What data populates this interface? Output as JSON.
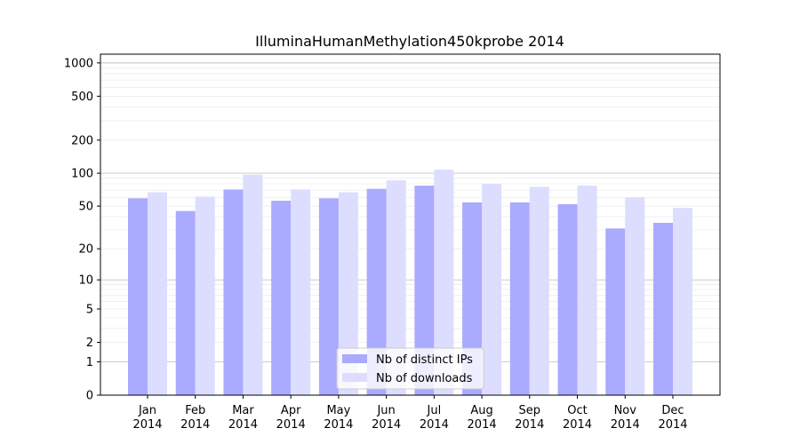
{
  "chart_data": {
    "type": "bar",
    "title": "IlluminaHumanMethylation450kprobe 2014",
    "xlabel": "",
    "ylabel": "",
    "yscale": "log1p",
    "ylim": [
      0,
      1200
    ],
    "yticks": [
      {
        "value": 0,
        "label": "0"
      },
      {
        "value": 1,
        "label": "1"
      },
      {
        "value": 2,
        "label": "2"
      },
      {
        "value": 5,
        "label": "5"
      },
      {
        "value": 10,
        "label": "10"
      },
      {
        "value": 20,
        "label": "20"
      },
      {
        "value": 50,
        "label": "50"
      },
      {
        "value": 100,
        "label": "100"
      },
      {
        "value": 200,
        "label": "200"
      },
      {
        "value": 500,
        "label": "500"
      },
      {
        "value": 1000,
        "label": "1000"
      }
    ],
    "major_gridlines": [
      1,
      10,
      100,
      1000
    ],
    "minor_gridlines": [
      2,
      3,
      4,
      5,
      6,
      7,
      8,
      9,
      20,
      30,
      40,
      50,
      60,
      70,
      80,
      90,
      200,
      300,
      400,
      500,
      600,
      700,
      800,
      900
    ],
    "grid": true,
    "categories": [
      {
        "month": "Jan",
        "year": "2014"
      },
      {
        "month": "Feb",
        "year": "2014"
      },
      {
        "month": "Mar",
        "year": "2014"
      },
      {
        "month": "Apr",
        "year": "2014"
      },
      {
        "month": "May",
        "year": "2014"
      },
      {
        "month": "Jun",
        "year": "2014"
      },
      {
        "month": "Jul",
        "year": "2014"
      },
      {
        "month": "Aug",
        "year": "2014"
      },
      {
        "month": "Sep",
        "year": "2014"
      },
      {
        "month": "Oct",
        "year": "2014"
      },
      {
        "month": "Nov",
        "year": "2014"
      },
      {
        "month": "Dec",
        "year": "2014"
      }
    ],
    "series": [
      {
        "name": "Nb of distinct IPs",
        "color": "#aaaaff",
        "values": [
          59,
          45,
          71,
          56,
          59,
          72,
          77,
          54,
          54,
          52,
          31,
          35
        ]
      },
      {
        "name": "Nb of downloads",
        "color": "#ddddff",
        "values": [
          67,
          61,
          97,
          71,
          67,
          86,
          108,
          80,
          75,
          77,
          60,
          48
        ]
      }
    ],
    "legend": {
      "position": "bottom-center"
    }
  }
}
